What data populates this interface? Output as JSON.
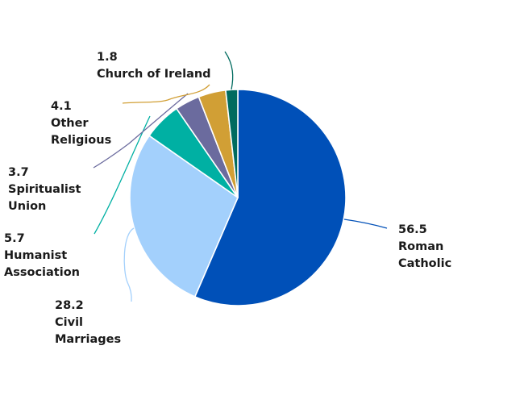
{
  "chart_data": {
    "type": "pie",
    "title": "",
    "start_angle_deg": 0,
    "direction": "clockwise",
    "slices": [
      {
        "label": "Roman Catholic",
        "value": 56.5,
        "value_text": "56.5",
        "label_lines": [
          "Roman",
          "Catholic"
        ],
        "color": "#0050b8"
      },
      {
        "label": "Civil Marriages",
        "value": 28.2,
        "value_text": "28.2",
        "label_lines": [
          "Civil",
          "Marriages"
        ],
        "color": "#a3d0fc"
      },
      {
        "label": "Humanist Association",
        "value": 5.7,
        "value_text": "5.7",
        "label_lines": [
          "Humanist",
          "Association"
        ],
        "color": "#00b0a3"
      },
      {
        "label": "Spiritualist Union",
        "value": 3.7,
        "value_text": "3.7",
        "label_lines": [
          "Spiritualist",
          "Union"
        ],
        "color": "#6b6b9e"
      },
      {
        "label": "Other Religious",
        "value": 4.1,
        "value_text": "4.1",
        "label_lines": [
          "Other",
          "Religious"
        ],
        "color": "#d19f35"
      },
      {
        "label": "Church of Ireland",
        "value": 1.8,
        "value_text": "1.8",
        "label_lines": [
          "Church of Ireland"
        ],
        "color": "#006b5f"
      }
    ]
  }
}
